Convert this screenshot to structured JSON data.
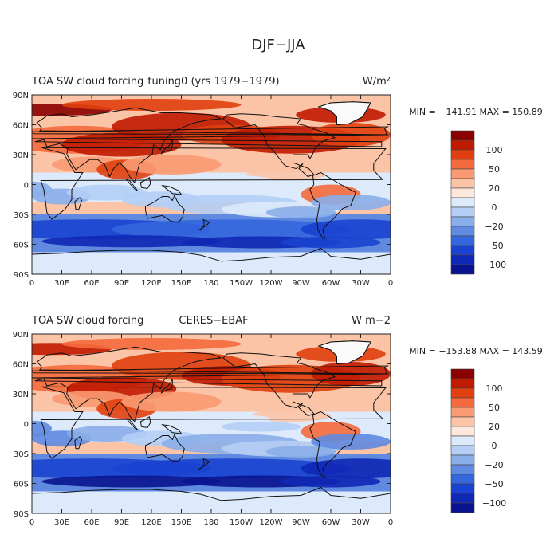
{
  "figure_title": "DJF−JJA",
  "x_ticks": [
    "0",
    "30E",
    "60E",
    "90E",
    "120E",
    "150E",
    "180",
    "150W",
    "120W",
    "90W",
    "60W",
    "30W",
    "0"
  ],
  "y_ticks": [
    "90N",
    "60N",
    "30N",
    "0",
    "30S",
    "60S",
    "90S"
  ],
  "colorbar_labels": [
    "100",
    "50",
    "20",
    "0",
    "−20",
    "−50",
    "−100"
  ],
  "colorbar_colors": [
    "#8b0000",
    "#c01a00",
    "#e04010",
    "#f46a3c",
    "#fa9a72",
    "#fcc4a6",
    "#fee8dc",
    "#ddeafb",
    "#b4cef5",
    "#8aaee9",
    "#5f8ae0",
    "#3466dd",
    "#1a42d0",
    "#0f28b5",
    "#0a1490"
  ],
  "chart_data": [
    {
      "type": "heatmap",
      "title_left": "TOA SW cloud forcing",
      "title_center": "tuning0 (yrs 1979−1979)",
      "units": "W/m²",
      "stats": "MIN = −141.91 MAX = 150.89",
      "min": -141.91,
      "max": 150.89,
      "xlim": [
        0,
        360
      ],
      "ylim": [
        -90,
        90
      ],
      "contour_levels": [
        -120,
        -100,
        -80,
        -50,
        -40,
        -20,
        -10,
        0,
        10,
        20,
        40,
        50,
        80,
        100,
        120
      ]
    },
    {
      "type": "heatmap",
      "title_left": "TOA SW cloud forcing",
      "title_center": "CERES−EBAF",
      "units": "W m−2",
      "stats": "MIN = −153.88 MAX = 143.59",
      "min": -153.88,
      "max": 143.59,
      "xlim": [
        0,
        360
      ],
      "ylim": [
        -90,
        90
      ],
      "contour_levels": [
        -120,
        -100,
        -80,
        -50,
        -40,
        -20,
        -10,
        0,
        10,
        20,
        40,
        50,
        80,
        100,
        120
      ]
    }
  ]
}
